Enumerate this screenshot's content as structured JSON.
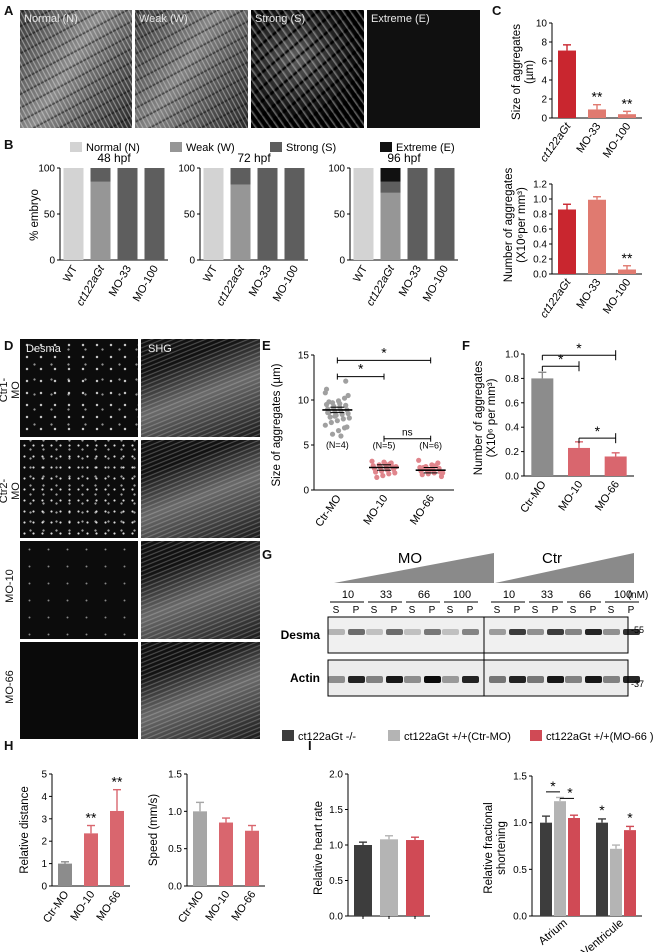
{
  "panels": {
    "A": {
      "letter": "A",
      "images": [
        {
          "label": "Normal (N)"
        },
        {
          "label": "Weak (W)"
        },
        {
          "label": "Strong (S)"
        },
        {
          "label": "Extreme (E)"
        }
      ]
    },
    "B": {
      "letter": "B",
      "legend": [
        "Normal (N)",
        "Weak (W)",
        "Strong (S)",
        "Extreme (E)"
      ],
      "colors": {
        "Normal (N)": "#d3d3d3",
        "Weak (W)": "#969696",
        "Strong (S)": "#5e5e5e",
        "Extreme (E)": "#111111"
      },
      "ylabel": "% embryo"
    },
    "C": {
      "letter": "C"
    },
    "D": {
      "letter": "D",
      "col_labels": [
        "Desma",
        "SHG"
      ],
      "row_labels": [
        "Ctr1-MO",
        "Ctr2-MO",
        "MO-10",
        "MO-66"
      ]
    },
    "E": {
      "letter": "E",
      "n_labels": [
        "(N=4)",
        "(N=5)",
        "(N=6)"
      ],
      "sig": [
        "*",
        "*",
        "ns"
      ]
    },
    "F": {
      "letter": "F",
      "sig": [
        "*",
        "*",
        "*"
      ]
    },
    "G": {
      "letter": "G",
      "groups": [
        "MO",
        "Ctr"
      ],
      "concentrations": [
        "10",
        "33",
        "66",
        "100",
        "10",
        "33",
        "66",
        "100"
      ],
      "unit": "(nM)",
      "fractions": [
        "S",
        "P"
      ],
      "rows": [
        "Desma",
        "Actin"
      ],
      "markers": [
        "-55",
        "-37"
      ]
    },
    "legend_HI": {
      "items": [
        {
          "label": "ct122aGt -/-",
          "color": "#3d3d3d"
        },
        {
          "label": "ct122aGt +/+(Ctr-MO)",
          "color": "#b4b4b4"
        },
        {
          "label": "ct122aGt +/+(MO-66 )",
          "color": "#d04a55"
        }
      ]
    },
    "H": {
      "letter": "H",
      "sig": [
        "**",
        "**"
      ]
    },
    "I": {
      "letter": "I",
      "sig": [
        "*",
        "*",
        "*",
        "*"
      ]
    }
  },
  "chart_data": [
    {
      "id": "B-48",
      "type": "bar",
      "stacked": true,
      "title": "48 hpf",
      "ylabel": "% embryo",
      "categories": [
        "WT",
        "ct122aGt",
        "MO-33",
        "MO-100"
      ],
      "series": [
        {
          "name": "Normal (N)",
          "values": [
            100,
            0,
            0,
            0
          ]
        },
        {
          "name": "Weak (W)",
          "values": [
            0,
            85,
            0,
            0
          ]
        },
        {
          "name": "Strong (S)",
          "values": [
            0,
            15,
            100,
            100
          ]
        },
        {
          "name": "Extreme (E)",
          "values": [
            0,
            0,
            0,
            0
          ]
        }
      ],
      "ylim": [
        0,
        100
      ],
      "yticks": [
        0,
        50,
        100
      ]
    },
    {
      "id": "B-72",
      "type": "bar",
      "stacked": true,
      "title": "72 hpf",
      "categories": [
        "WT",
        "ct122aGt",
        "MO-33",
        "MO-100"
      ],
      "series": [
        {
          "name": "Normal (N)",
          "values": [
            100,
            0,
            0,
            0
          ]
        },
        {
          "name": "Weak (W)",
          "values": [
            0,
            82,
            0,
            0
          ]
        },
        {
          "name": "Strong (S)",
          "values": [
            0,
            18,
            100,
            100
          ]
        },
        {
          "name": "Extreme (E)",
          "values": [
            0,
            0,
            0,
            0
          ]
        }
      ],
      "ylim": [
        0,
        100
      ],
      "yticks": [
        0,
        50,
        100
      ]
    },
    {
      "id": "B-96",
      "type": "bar",
      "stacked": true,
      "title": "96 hpf",
      "categories": [
        "WT",
        "ct122aGt",
        "MO-33",
        "MO-100"
      ],
      "series": [
        {
          "name": "Normal (N)",
          "values": [
            100,
            0,
            0,
            0
          ]
        },
        {
          "name": "Weak (W)",
          "values": [
            0,
            73,
            0,
            0
          ]
        },
        {
          "name": "Strong (S)",
          "values": [
            0,
            12,
            100,
            100
          ]
        },
        {
          "name": "Extreme (E)",
          "values": [
            0,
            15,
            0,
            0
          ]
        }
      ],
      "ylim": [
        0,
        100
      ],
      "yticks": [
        0,
        50,
        100
      ]
    },
    {
      "id": "C-size",
      "type": "bar",
      "ylabel": "Size of aggregates (µm)",
      "categories": [
        "ct122aGt",
        "MO-33",
        "MO-100"
      ],
      "values": [
        7.1,
        0.9,
        0.4
      ],
      "errors": [
        0.6,
        0.5,
        0.3
      ],
      "annotations": [
        "",
        "**",
        "**"
      ],
      "colors": [
        "#c9262f",
        "#e07a70",
        "#e07a70"
      ],
      "ylim": [
        0,
        10
      ],
      "yticks": [
        0,
        2,
        4,
        6,
        8,
        10
      ]
    },
    {
      "id": "C-number",
      "type": "bar",
      "ylabel": "Number of aggregates (X10⁶per mm³)",
      "categories": [
        "ct122aGt",
        "MO-33",
        "MO-100"
      ],
      "values": [
        0.86,
        0.99,
        0.06
      ],
      "errors": [
        0.07,
        0.04,
        0.05
      ],
      "annotations": [
        "",
        "",
        "**"
      ],
      "colors": [
        "#c9262f",
        "#e07a70",
        "#e07a70"
      ],
      "ylim": [
        0,
        1.2
      ],
      "yticks": [
        0,
        0.2,
        0.4,
        0.6,
        0.8,
        1.0,
        1.2
      ]
    },
    {
      "id": "E",
      "type": "scatter",
      "ylabel": "Size of aggregates (µm)",
      "categories": [
        "Ctr-MO",
        "MO-10",
        "MO-66"
      ],
      "means": [
        8.9,
        2.5,
        2.2
      ],
      "sem": [
        0.3,
        0.3,
        0.3
      ],
      "points": [
        [
          10.8,
          10.2,
          9.9,
          9.7,
          9.5,
          9.4,
          9.2,
          9.1,
          9.0,
          8.9,
          8.8,
          8.7,
          8.6,
          8.5,
          8.4,
          8.3,
          8.1,
          8.0,
          7.9,
          7.7,
          7.5,
          7.2,
          6.9,
          6.6,
          6.2,
          11.2,
          12.1,
          9.6,
          9.3,
          8.6,
          7.0,
          6.0,
          8.2,
          9.8,
          10.5
        ],
        [
          3.2,
          3.0,
          2.9,
          2.8,
          2.7,
          2.6,
          2.5,
          2.5,
          2.4,
          2.3,
          2.2,
          2.1,
          2.0,
          1.9,
          1.8,
          1.6,
          1.4,
          2.6,
          2.9,
          3.1
        ],
        [
          3.3,
          3.0,
          2.8,
          2.6,
          2.5,
          2.4,
          2.3,
          2.2,
          2.1,
          2.0,
          1.9,
          1.8,
          1.7,
          1.5,
          2.7,
          2.2,
          2.5,
          1.9
        ]
      ],
      "colors": [
        "#a0a0a0",
        "#e0858c",
        "#e0858c"
      ],
      "ylim": [
        0,
        15
      ],
      "yticks": [
        0,
        5,
        10,
        15
      ]
    },
    {
      "id": "F",
      "type": "bar",
      "ylabel": "Number of aggregates (X10⁶ per mm³)",
      "categories": [
        "Ctr-MO",
        "MO-10",
        "MO-66"
      ],
      "values": [
        0.8,
        0.23,
        0.16
      ],
      "errors": [
        0.05,
        0.05,
        0.03
      ],
      "colors": [
        "#8c8c8c",
        "#d9666e",
        "#d9666e"
      ],
      "ylim": [
        0,
        1.0
      ],
      "yticks": [
        0,
        0.2,
        0.4,
        0.6,
        0.8,
        1.0
      ]
    },
    {
      "id": "H-distance",
      "type": "bar",
      "ylabel": "Relative distance",
      "categories": [
        "Ctr-MO",
        "MO-10",
        "MO-66"
      ],
      "values": [
        1.0,
        2.35,
        3.35
      ],
      "errors": [
        0.08,
        0.35,
        0.95
      ],
      "annotations": [
        "",
        "**",
        "**"
      ],
      "colors": [
        "#8c8c8c",
        "#d9666e",
        "#d9666e"
      ],
      "ylim": [
        0,
        5
      ],
      "yticks": [
        0,
        1,
        2,
        3,
        4,
        5
      ]
    },
    {
      "id": "H-speed",
      "type": "bar",
      "ylabel": "Speed (mm/s)",
      "categories": [
        "Ctr-MO",
        "MO-10",
        "MO-66"
      ],
      "values": [
        1.0,
        0.85,
        0.74
      ],
      "errors": [
        0.12,
        0.06,
        0.07
      ],
      "colors": [
        "#a6a6a6",
        "#d9666e",
        "#d9666e"
      ],
      "ylim": [
        0,
        1.5
      ],
      "yticks": [
        0,
        0.5,
        1.0,
        1.5
      ]
    },
    {
      "id": "I-heart",
      "type": "bar",
      "ylabel": "Relative heart rate",
      "categories": [
        "ct122aGt -/-",
        "ct122aGt +/+(Ctr-MO)",
        "ct122aGt +/+(MO-66 )"
      ],
      "values": [
        1.0,
        1.08,
        1.07
      ],
      "errors": [
        0.04,
        0.05,
        0.04
      ],
      "colors": [
        "#3d3d3d",
        "#b4b4b4",
        "#d04a55"
      ],
      "ylim": [
        0,
        2.0
      ],
      "yticks": [
        0,
        0.5,
        1.0,
        1.5,
        2.0
      ]
    },
    {
      "id": "I-shortening",
      "type": "bar",
      "ylabel": "Relative fractional shortening",
      "categories": [
        "Atrium",
        "Ventricule"
      ],
      "series": [
        {
          "name": "ct122aGt -/-",
          "values": [
            1.0,
            1.0
          ]
        },
        {
          "name": "ct122aGt +/+(Ctr-MO)",
          "values": [
            1.23,
            0.72
          ]
        },
        {
          "name": "ct122aGt +/+(MO-66 )",
          "values": [
            1.05,
            0.92
          ]
        }
      ],
      "errors": [
        [
          0.07,
          0.04
        ],
        [
          0.04,
          0.04
        ],
        [
          0.03,
          0.04
        ]
      ],
      "colors": [
        "#3d3d3d",
        "#b4b4b4",
        "#d04a55"
      ],
      "ylim": [
        0,
        1.5
      ],
      "yticks": [
        0,
        0.5,
        1.0,
        1.5
      ]
    }
  ]
}
